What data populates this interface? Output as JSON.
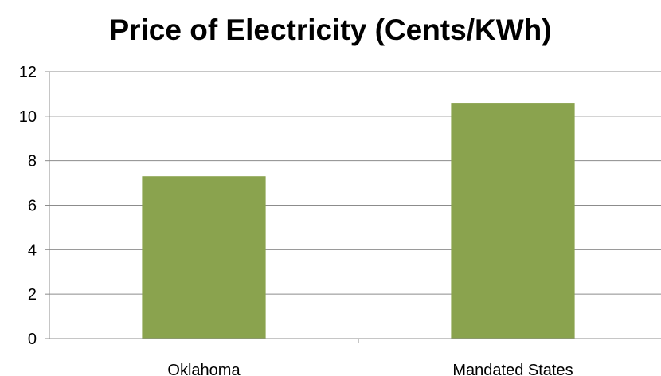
{
  "chart_data": {
    "type": "bar",
    "title": "Price of Electricity (Cents/KWh)",
    "xlabel": "",
    "ylabel": "",
    "categories": [
      "Oklahoma",
      "Mandated States"
    ],
    "values": [
      7.3,
      10.6
    ],
    "ylim": [
      0,
      12
    ],
    "yticks": [
      0,
      2,
      4,
      6,
      8,
      10,
      12
    ],
    "grid": true,
    "legend": "none",
    "colors": {
      "bar": "#8aa34e",
      "grid": "#8c8c8c",
      "axis": "#8c8c8c"
    }
  }
}
